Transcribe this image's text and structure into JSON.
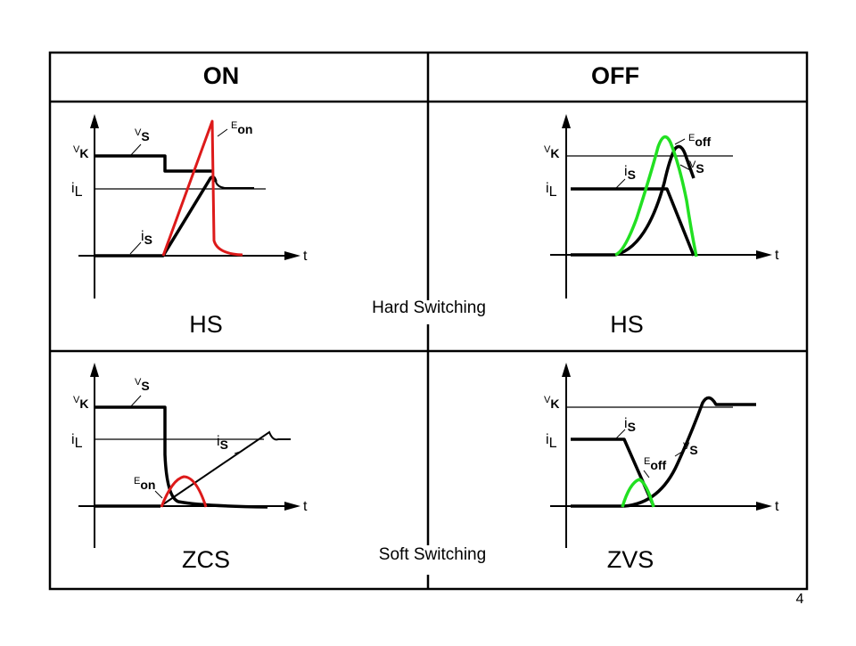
{
  "header": {
    "on": "ON",
    "off": "OFF"
  },
  "labels": {
    "hard_switching": "Hard Switching",
    "soft_switching": "Soft Switching",
    "hs_on": "HS",
    "hs_off": "HS",
    "zcs": "ZCS",
    "zvs": "ZVS"
  },
  "symbols": {
    "v": "V",
    "k": "K",
    "s": "S",
    "i": "i",
    "l": "L",
    "e": "E",
    "on": "on",
    "off": "off",
    "t": "t"
  },
  "page_number": "4",
  "colors": {
    "energy_on": "#dd1a1a",
    "energy_off": "#22e022",
    "waveform": "#000000"
  }
}
